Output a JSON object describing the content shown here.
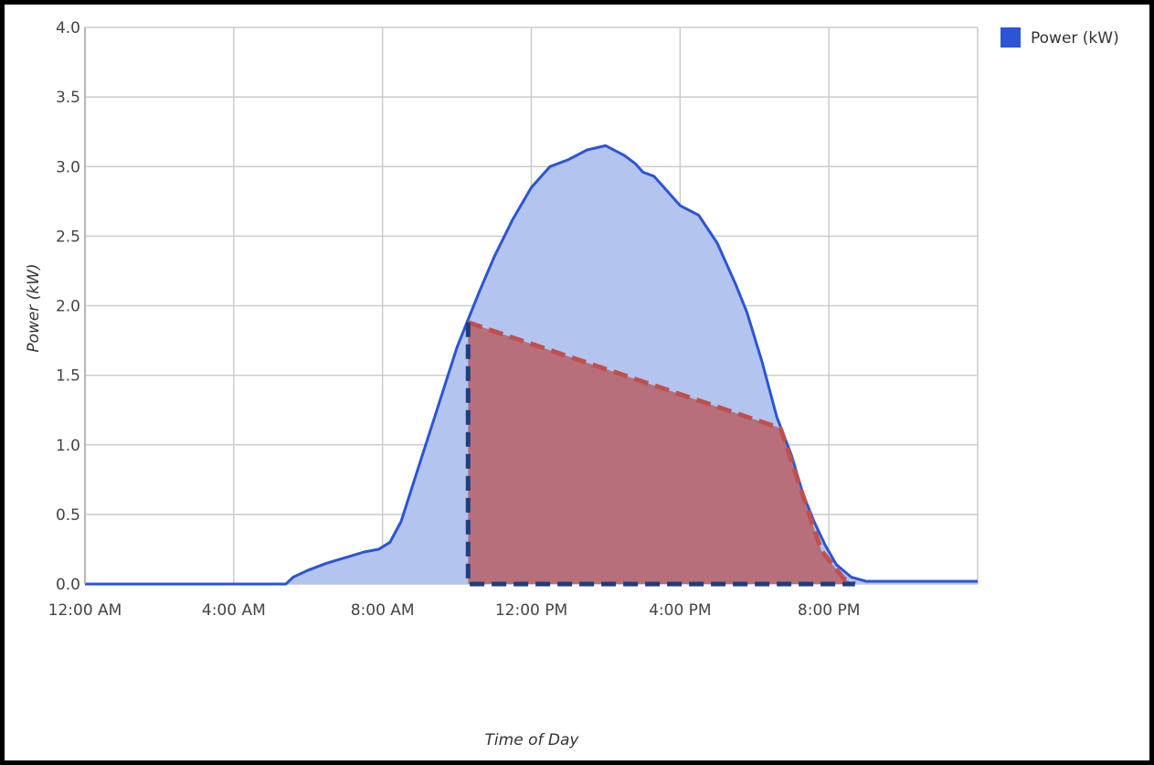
{
  "chart_data": {
    "type": "area",
    "title": "",
    "xlabel": "Time of Day",
    "ylabel": "Power (kW)",
    "xlim": [
      0,
      24
    ],
    "ylim": [
      0,
      4.0
    ],
    "grid": true,
    "legend": {
      "placement": "top-right",
      "entries": [
        "Power (kW)"
      ]
    },
    "x_ticks": [
      {
        "value": 0,
        "label": "12:00 AM"
      },
      {
        "value": 4,
        "label": "4:00 AM"
      },
      {
        "value": 8,
        "label": "8:00 AM"
      },
      {
        "value": 12,
        "label": "12:00 PM"
      },
      {
        "value": 16,
        "label": "4:00 PM"
      },
      {
        "value": 20,
        "label": "8:00 PM"
      }
    ],
    "y_ticks": [
      {
        "value": 0,
        "label": "0.0"
      },
      {
        "value": 0.5,
        "label": "0.5"
      },
      {
        "value": 1.0,
        "label": "1.0"
      },
      {
        "value": 1.5,
        "label": "1.5"
      },
      {
        "value": 2.0,
        "label": "2.0"
      },
      {
        "value": 2.5,
        "label": "2.5"
      },
      {
        "value": 3.0,
        "label": "3.0"
      },
      {
        "value": 3.5,
        "label": "3.5"
      },
      {
        "value": 4.0,
        "label": "4.0"
      }
    ],
    "series": [
      {
        "name": "Power (kW)",
        "color": "#2b55d4",
        "fill": "#b3c4ef",
        "x": [
          0,
          5.4,
          5.6,
          6.0,
          6.5,
          7.0,
          7.5,
          7.9,
          8.2,
          8.5,
          8.8,
          9.1,
          9.4,
          9.7,
          10.0,
          10.3,
          10.6,
          11.0,
          11.5,
          12.0,
          12.5,
          13.0,
          13.5,
          14.0,
          14.5,
          14.8,
          15.0,
          15.3,
          15.5,
          15.8,
          16.0,
          16.5,
          17.0,
          17.5,
          17.8,
          18.2,
          18.6,
          19.0,
          19.3,
          19.6,
          19.9,
          20.2,
          20.6,
          21.0,
          24
        ],
        "y": [
          0,
          0,
          0.05,
          0.1,
          0.15,
          0.19,
          0.23,
          0.25,
          0.3,
          0.45,
          0.7,
          0.95,
          1.2,
          1.45,
          1.7,
          1.9,
          2.1,
          2.35,
          2.62,
          2.85,
          3.0,
          3.05,
          3.12,
          3.15,
          3.08,
          3.02,
          2.96,
          2.93,
          2.87,
          2.78,
          2.72,
          2.65,
          2.45,
          2.15,
          1.95,
          1.6,
          1.2,
          0.92,
          0.65,
          0.45,
          0.28,
          0.14,
          0.05,
          0.02,
          0.02
        ]
      }
    ],
    "overlay": {
      "color": "#b05560",
      "fill": "#b66a74",
      "outline_color": "#c0504d",
      "baseline_color": "#1e3d7b",
      "x": [
        10.3,
        18.7,
        19.8,
        20.4,
        20.7
      ],
      "y": [
        1.88,
        1.12,
        0.24,
        0.04,
        0.0
      ]
    }
  }
}
